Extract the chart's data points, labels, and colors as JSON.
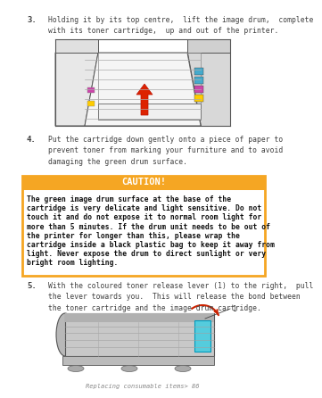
{
  "bg_color": "#ffffff",
  "step3_number": "3.",
  "step3_text": "Holding it by its top centre,  lift the image drum,  complete\nwith its toner cartridge,  up and out of the printer.",
  "step4_number": "4.",
  "step4_text": "Put the cartridge down gently onto a piece of paper to\nprevent toner from marking your furniture and to avoid\ndamaging the green drum surface.",
  "caution_header": "CAUTION!",
  "caution_header_bg": "#f5a623",
  "caution_header_color": "#ffffff",
  "caution_border_color": "#f5a623",
  "caution_text_line1": "The green image drum surface at the base of the",
  "caution_text_line2": "cartridge is very delicate and light sensitive. Do not",
  "caution_text_line3": "touch it and do not expose it to normal room light for",
  "caution_text_line4": "more than 5 minutes. If the drum unit needs to be out of",
  "caution_text_line5": "the printer for longer than this, please wrap the",
  "caution_text_line6": "cartridge inside a black plastic bag to keep it away from",
  "caution_text_line7": "light. Never expose the drum to direct sunlight or very",
  "caution_text_line8": "bright room lighting.",
  "step5_number": "5.",
  "step5_text": "With the coloured toner release lever (1) to the right,  pull\nthe lever towards you.  This will release the bond between\nthe toner cartridge and the image drum cartridge.",
  "footer_text": "Replacing consumable items> 86",
  "text_color": "#404040",
  "font_size_body": 5.8,
  "font_size_step_num": 6.5,
  "font_size_caution_header": 7.5,
  "font_size_caution_body": 5.8,
  "font_size_footer": 5.0
}
